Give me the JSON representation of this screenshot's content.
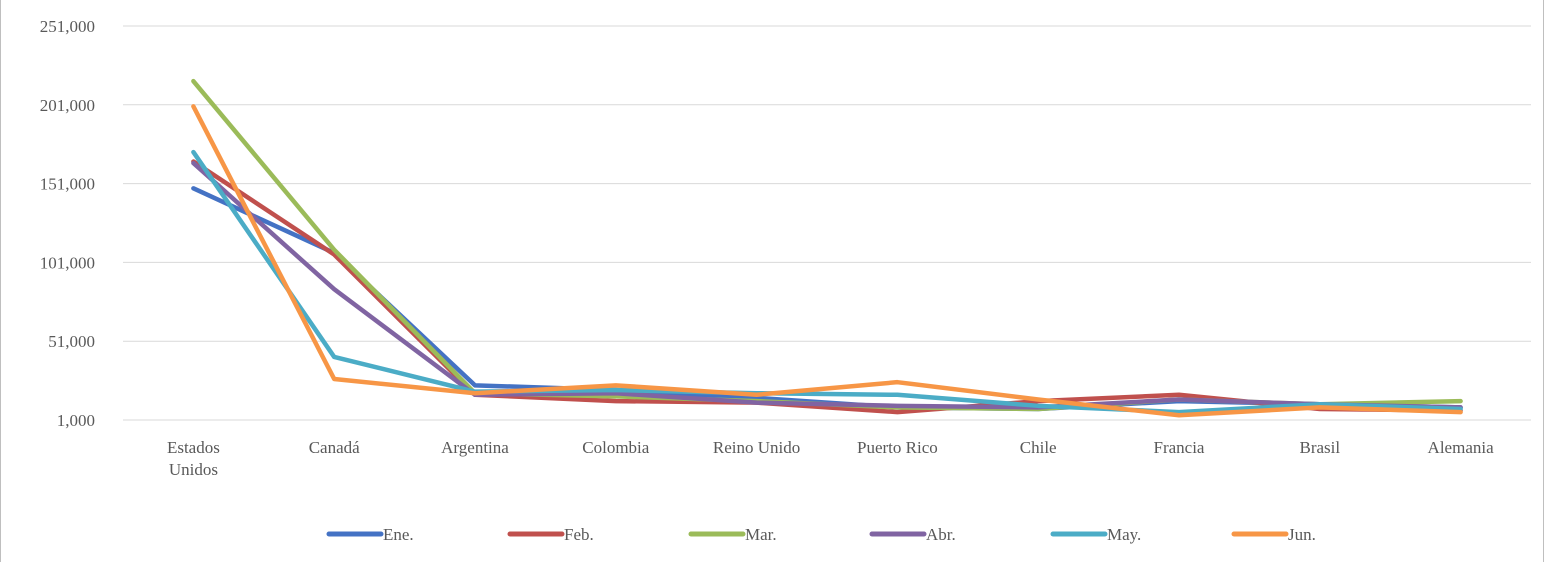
{
  "chart_data": {
    "type": "line",
    "title": "",
    "xlabel": "",
    "ylabel": "",
    "categories": [
      "Estados Unidos",
      "Canadá",
      "Argentina",
      "Colombia",
      "Reino Unido",
      "Puerto  Rico",
      "Chile",
      "Francia",
      "Brasil",
      "Alemania"
    ],
    "y_ticks": [
      1000,
      51000,
      101000,
      151000,
      201000,
      251000
    ],
    "y_tick_labels": [
      "1,000",
      "51,000",
      "101,000",
      "151,000",
      "201,000",
      "251,000"
    ],
    "ylim": [
      1000,
      251000
    ],
    "grid": true,
    "legend_position": "bottom",
    "series": [
      {
        "name": "Ene.",
        "color": "#4472c4",
        "values": [
          148000,
          107000,
          23000,
          20000,
          15000,
          9000,
          8000,
          13000,
          11000,
          9000
        ]
      },
      {
        "name": "Feb.",
        "color": "#c0504d",
        "values": [
          165000,
          106000,
          17000,
          13000,
          12000,
          6000,
          13000,
          17000,
          8000,
          7000
        ]
      },
      {
        "name": "Mar.",
        "color": "#9bbb59",
        "values": [
          216000,
          109000,
          18000,
          16000,
          13000,
          9000,
          8000,
          14000,
          11000,
          13000
        ]
      },
      {
        "name": "Abr.",
        "color": "#8064a2",
        "values": [
          164000,
          84000,
          17000,
          18000,
          12000,
          10000,
          9000,
          14000,
          11000,
          9000
        ]
      },
      {
        "name": "May.",
        "color": "#4bacc6",
        "values": [
          171000,
          41000,
          19000,
          20000,
          18000,
          17000,
          10000,
          6000,
          11000,
          8000
        ]
      },
      {
        "name": "Jun.",
        "color": "#f79646",
        "values": [
          200000,
          27000,
          18000,
          23000,
          17000,
          25000,
          14000,
          4000,
          9000,
          6000
        ]
      }
    ]
  }
}
